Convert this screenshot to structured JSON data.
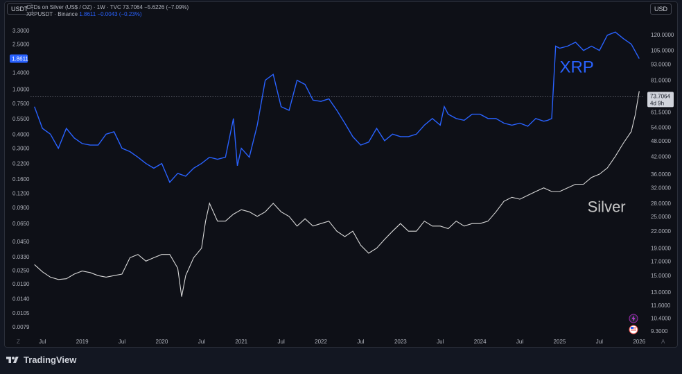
{
  "header": {
    "left_currency": "USDT",
    "right_currency": "USD"
  },
  "legend": {
    "silver_name": "CFDs on Silver (US$ / OZ) · 1W · TVC",
    "silver_last": "73.7064",
    "silver_change": "−5.6226 (−7.09%)",
    "xrp_name": "XRPUSDT · Binance",
    "xrp_last": "1.8611",
    "xrp_change": "−0.0043 (−0.23%)"
  },
  "footer": {
    "brand": "TradingView"
  },
  "colors": {
    "xrp": "#2962ff",
    "silver": "#d9d9d9",
    "background": "#0e1017"
  },
  "icons": [
    "tradingview-logo-icon",
    "flash-icon",
    "us-flag-icon"
  ],
  "chart_data": {
    "type": "line",
    "x_ticks": [
      "Jul",
      "2019",
      "Jul",
      "2020",
      "Jul",
      "2021",
      "Jul",
      "2022",
      "Jul",
      "2023",
      "Jul",
      "2024",
      "Jul",
      "2025",
      "Jul",
      "2026"
    ],
    "left_axis": {
      "scale": "log",
      "ticks": [
        "3.3000",
        "2.5000",
        "1.4000",
        "1.0000",
        "0.7500",
        "0.5500",
        "0.4000",
        "0.3000",
        "0.2200",
        "0.1600",
        "0.1200",
        "0.0900",
        "0.0650",
        "0.0450",
        "0.0330",
        "0.0250",
        "0.0190",
        "0.0140",
        "0.0105",
        "0.0079"
      ],
      "current_label": "1.8611"
    },
    "right_axis": {
      "scale": "log",
      "ticks": [
        "120.0000",
        "105.0000",
        "93.0000",
        "81.0000",
        "61.5000",
        "54.0000",
        "48.0000",
        "42.0000",
        "36.0000",
        "32.0000",
        "28.0000",
        "25.0000",
        "22.0000",
        "19.0000",
        "17.0000",
        "15.0000",
        "13.0000",
        "11.6000",
        "10.4000",
        "9.3000"
      ],
      "current_label": "73.7064",
      "countdown": "4d 9h"
    },
    "annotations": [
      "XRP",
      "Silver"
    ],
    "series": [
      {
        "name": "XRP",
        "axis": "left",
        "color": "#2962ff",
        "x": [
          2018.4,
          2018.5,
          2018.6,
          2018.7,
          2018.8,
          2018.9,
          2019.0,
          2019.1,
          2019.2,
          2019.3,
          2019.4,
          2019.5,
          2019.6,
          2019.7,
          2019.8,
          2019.9,
          2020.0,
          2020.1,
          2020.2,
          2020.3,
          2020.4,
          2020.5,
          2020.6,
          2020.7,
          2020.8,
          2020.9,
          2020.95,
          2021.0,
          2021.1,
          2021.2,
          2021.3,
          2021.4,
          2021.5,
          2021.6,
          2021.7,
          2021.8,
          2021.9,
          2022.0,
          2022.1,
          2022.2,
          2022.3,
          2022.4,
          2022.5,
          2022.6,
          2022.7,
          2022.8,
          2022.9,
          2023.0,
          2023.1,
          2023.2,
          2023.3,
          2023.4,
          2023.5,
          2023.55,
          2023.6,
          2023.7,
          2023.8,
          2023.9,
          2024.0,
          2024.1,
          2024.2,
          2024.3,
          2024.4,
          2024.5,
          2024.6,
          2024.7,
          2024.8,
          2024.85,
          2024.9,
          2024.95,
          2025.0,
          2025.1,
          2025.2,
          2025.3,
          2025.4,
          2025.5,
          2025.6,
          2025.7,
          2025.8,
          2025.9,
          2026.0
        ],
        "values": [
          0.7,
          0.45,
          0.4,
          0.3,
          0.45,
          0.37,
          0.33,
          0.32,
          0.32,
          0.4,
          0.42,
          0.3,
          0.28,
          0.25,
          0.22,
          0.2,
          0.22,
          0.15,
          0.18,
          0.17,
          0.2,
          0.22,
          0.25,
          0.24,
          0.25,
          0.55,
          0.21,
          0.3,
          0.25,
          0.48,
          1.2,
          1.35,
          0.7,
          0.65,
          1.2,
          1.1,
          0.8,
          0.78,
          0.82,
          0.65,
          0.5,
          0.38,
          0.32,
          0.34,
          0.45,
          0.35,
          0.4,
          0.38,
          0.38,
          0.4,
          0.48,
          0.55,
          0.48,
          0.7,
          0.6,
          0.55,
          0.53,
          0.6,
          0.6,
          0.55,
          0.55,
          0.5,
          0.48,
          0.5,
          0.47,
          0.55,
          0.52,
          0.53,
          0.55,
          2.4,
          2.3,
          2.4,
          2.6,
          2.2,
          2.4,
          2.2,
          3.0,
          3.2,
          2.8,
          2.5,
          1.8611
        ]
      },
      {
        "name": "Silver",
        "axis": "right",
        "color": "#d9d9d9",
        "x": [
          2018.4,
          2018.5,
          2018.6,
          2018.7,
          2018.8,
          2018.9,
          2019.0,
          2019.1,
          2019.2,
          2019.3,
          2019.4,
          2019.5,
          2019.6,
          2019.7,
          2019.8,
          2019.9,
          2020.0,
          2020.1,
          2020.2,
          2020.25,
          2020.3,
          2020.4,
          2020.5,
          2020.55,
          2020.6,
          2020.7,
          2020.8,
          2020.9,
          2021.0,
          2021.1,
          2021.2,
          2021.3,
          2021.4,
          2021.5,
          2021.6,
          2021.7,
          2021.8,
          2021.9,
          2022.0,
          2022.1,
          2022.2,
          2022.3,
          2022.4,
          2022.5,
          2022.6,
          2022.7,
          2022.8,
          2022.9,
          2023.0,
          2023.1,
          2023.2,
          2023.3,
          2023.4,
          2023.5,
          2023.6,
          2023.7,
          2023.8,
          2023.9,
          2024.0,
          2024.1,
          2024.2,
          2024.3,
          2024.4,
          2024.5,
          2024.6,
          2024.7,
          2024.8,
          2024.9,
          2025.0,
          2025.1,
          2025.2,
          2025.3,
          2025.4,
          2025.5,
          2025.6,
          2025.7,
          2025.8,
          2025.9,
          2025.95,
          2026.0
        ],
        "values": [
          16.5,
          15.5,
          14.8,
          14.5,
          14.6,
          15.2,
          15.6,
          15.4,
          15.0,
          14.8,
          15.0,
          15.2,
          17.5,
          18.0,
          17.0,
          17.5,
          18.0,
          18.0,
          16.0,
          12.5,
          15.0,
          17.5,
          19.0,
          24.0,
          28.0,
          24.0,
          24.0,
          25.5,
          26.5,
          26.0,
          25.0,
          26.0,
          28.0,
          26.0,
          25.0,
          23.0,
          24.5,
          23.0,
          23.5,
          24.0,
          22.0,
          21.0,
          22.0,
          19.5,
          18.2,
          19.0,
          20.5,
          22.0,
          23.5,
          22.0,
          22.0,
          24.0,
          23.0,
          23.0,
          22.5,
          24.0,
          23.0,
          23.5,
          23.5,
          24.0,
          26.0,
          28.5,
          29.5,
          29.0,
          30.0,
          31.0,
          32.0,
          31.0,
          31.0,
          32.0,
          33.0,
          33.0,
          35.0,
          36.0,
          38.0,
          42.0,
          47.0,
          52.0,
          60.0,
          73.7064
        ]
      }
    ]
  }
}
